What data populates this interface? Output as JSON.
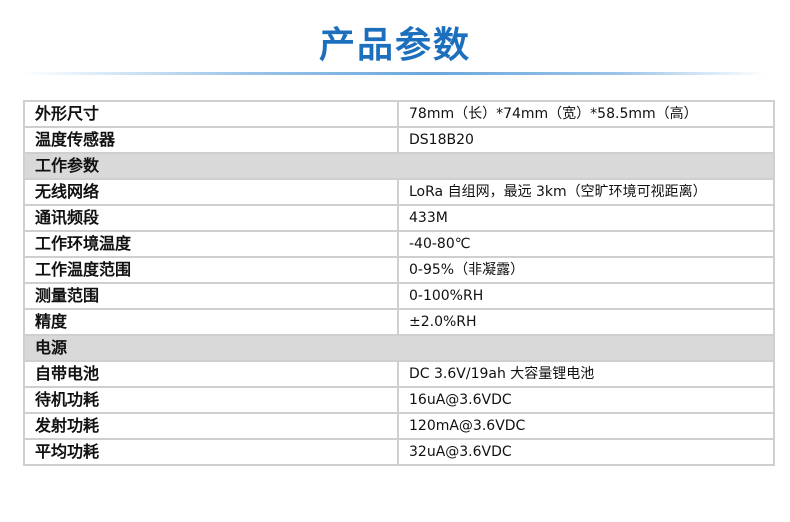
{
  "title": "产品参数",
  "colors": {
    "title": "#1c6fbd",
    "section_bg": "#d9d9d9"
  },
  "rows": [
    {
      "type": "row",
      "label": "外形尺寸",
      "value": "78mm（长）*74mm（宽）*58.5mm（高）"
    },
    {
      "type": "row",
      "label": "温度传感器",
      "value": "DS18B20"
    },
    {
      "type": "section",
      "label": "工作参数"
    },
    {
      "type": "row",
      "label": "无线网络",
      "value": "LoRa 自组网，最远 3km（空旷环境可视距离）"
    },
    {
      "type": "row",
      "label": "通讯频段",
      "value": "433M"
    },
    {
      "type": "row",
      "label": "工作环境温度",
      "value": "-40-80℃"
    },
    {
      "type": "row",
      "label": "工作温度范围",
      "value": "0-95%（非凝露）"
    },
    {
      "type": "row",
      "label": "测量范围",
      "value": "0-100%RH"
    },
    {
      "type": "row",
      "label": "精度",
      "value": "±2.0%RH"
    },
    {
      "type": "section",
      "label": "电源"
    },
    {
      "type": "row",
      "label": "自带电池",
      "value": "DC 3.6V/19ah 大容量锂电池"
    },
    {
      "type": "row",
      "label": "待机功耗",
      "value": "16uA@3.6VDC"
    },
    {
      "type": "row",
      "label": "发射功耗",
      "value": "120mA@3.6VDC"
    },
    {
      "type": "row",
      "label": "平均功耗",
      "value": "32uA@3.6VDC"
    }
  ]
}
